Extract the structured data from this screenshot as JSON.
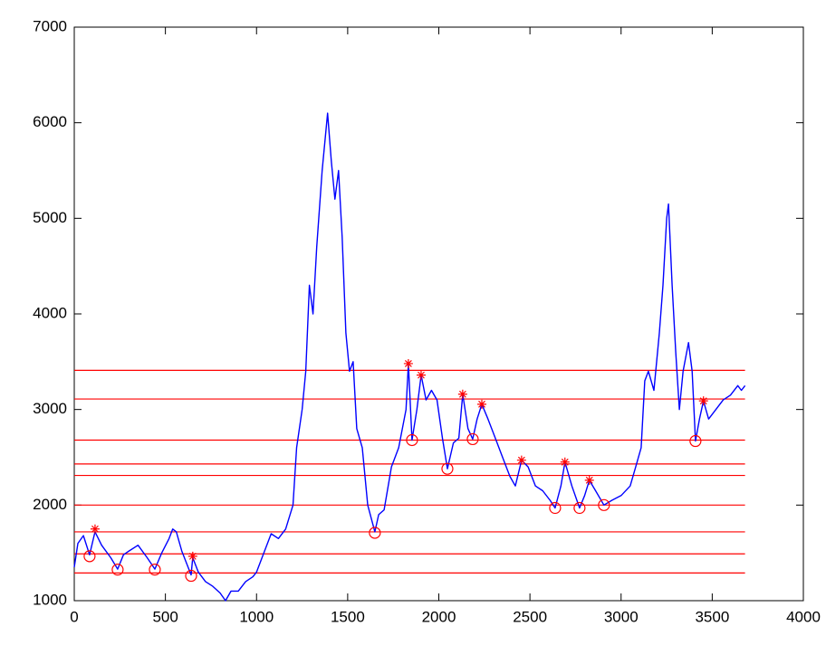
{
  "chart_data": {
    "type": "line",
    "xlim": [
      0,
      4000
    ],
    "ylim": [
      1000,
      7000
    ],
    "xticks": [
      0,
      500,
      1000,
      1500,
      2000,
      2500,
      3000,
      3500,
      4000
    ],
    "yticks": [
      1000,
      2000,
      3000,
      4000,
      5000,
      6000,
      7000
    ],
    "reference_lines": {
      "color": "#ff0000",
      "values": [
        3410,
        3110,
        2680,
        2430,
        2310,
        2000,
        1720,
        1490,
        1290
      ]
    },
    "series": [
      {
        "color": "#0000ff",
        "marker": "none",
        "x": [
          0,
          20,
          50,
          84,
          114,
          150,
          200,
          238,
          270,
          300,
          350,
          400,
          442,
          480,
          520,
          540,
          560,
          590,
          641,
          650,
          680,
          720,
          760,
          800,
          830,
          860,
          900,
          940,
          980,
          1000,
          1040,
          1080,
          1120,
          1160,
          1200,
          1220,
          1250,
          1270,
          1290,
          1310,
          1330,
          1360,
          1390,
          1410,
          1430,
          1450,
          1470,
          1490,
          1510,
          1530,
          1550,
          1580,
          1610,
          1649,
          1670,
          1700,
          1740,
          1780,
          1820,
          1833,
          1853,
          1880,
          1903,
          1930,
          1960,
          1990,
          2020,
          2047,
          2080,
          2110,
          2131,
          2160,
          2186,
          2210,
          2236,
          2270,
          2310,
          2350,
          2390,
          2420,
          2454,
          2490,
          2530,
          2570,
          2610,
          2638,
          2670,
          2692,
          2730,
          2772,
          2800,
          2826,
          2860,
          2906,
          2950,
          3000,
          3050,
          3080,
          3110,
          3130,
          3150,
          3180,
          3210,
          3230,
          3250,
          3260,
          3280,
          3300,
          3320,
          3340,
          3370,
          3390,
          3408,
          3430,
          3452,
          3480,
          3520,
          3560,
          3600,
          3640,
          3660,
          3680
        ],
        "values": [
          1350,
          1600,
          1680,
          1480,
          1720,
          1580,
          1450,
          1330,
          1480,
          1520,
          1580,
          1450,
          1330,
          1500,
          1650,
          1750,
          1720,
          1520,
          1270,
          1450,
          1300,
          1200,
          1150,
          1080,
          1000,
          1100,
          1100,
          1200,
          1250,
          1300,
          1500,
          1700,
          1650,
          1750,
          2000,
          2600,
          3000,
          3400,
          4300,
          4000,
          4700,
          5500,
          6100,
          5600,
          5200,
          5500,
          4800,
          3800,
          3400,
          3500,
          2800,
          2600,
          2000,
          1720,
          1900,
          1950,
          2400,
          2600,
          3000,
          3480,
          2680,
          3000,
          3360,
          3100,
          3200,
          3100,
          2700,
          2380,
          2650,
          2700,
          3160,
          2800,
          2690,
          2900,
          3055,
          2900,
          2700,
          2500,
          2300,
          2200,
          2470,
          2400,
          2200,
          2150,
          2050,
          1970,
          2200,
          2450,
          2200,
          1970,
          2100,
          2260,
          2150,
          2000,
          2050,
          2100,
          2200,
          2400,
          2600,
          3300,
          3400,
          3200,
          3800,
          4300,
          5000,
          5150,
          4300,
          3600,
          3000,
          3400,
          3700,
          3400,
          2670,
          2900,
          3090,
          2900,
          3000,
          3100,
          3150,
          3250,
          3200,
          3250
        ]
      },
      {
        "color": "#ff0000",
        "marker": "*",
        "x": [
          114,
          650,
          1833,
          1903,
          2131,
          2236,
          2454,
          2692,
          2826,
          3452
        ],
        "values": [
          1750,
          1465,
          3480,
          3360,
          3160,
          3055,
          2470,
          2450,
          2260,
          3090
        ]
      },
      {
        "color": "#ff0000",
        "marker": "o",
        "x": [
          84,
          238,
          442,
          641,
          1649,
          1853,
          2047,
          2186,
          2638,
          2772,
          2906,
          3408
        ],
        "values": [
          1465,
          1325,
          1325,
          1260,
          1710,
          2680,
          2380,
          2690,
          1970,
          1970,
          2000,
          2670
        ]
      }
    ]
  }
}
